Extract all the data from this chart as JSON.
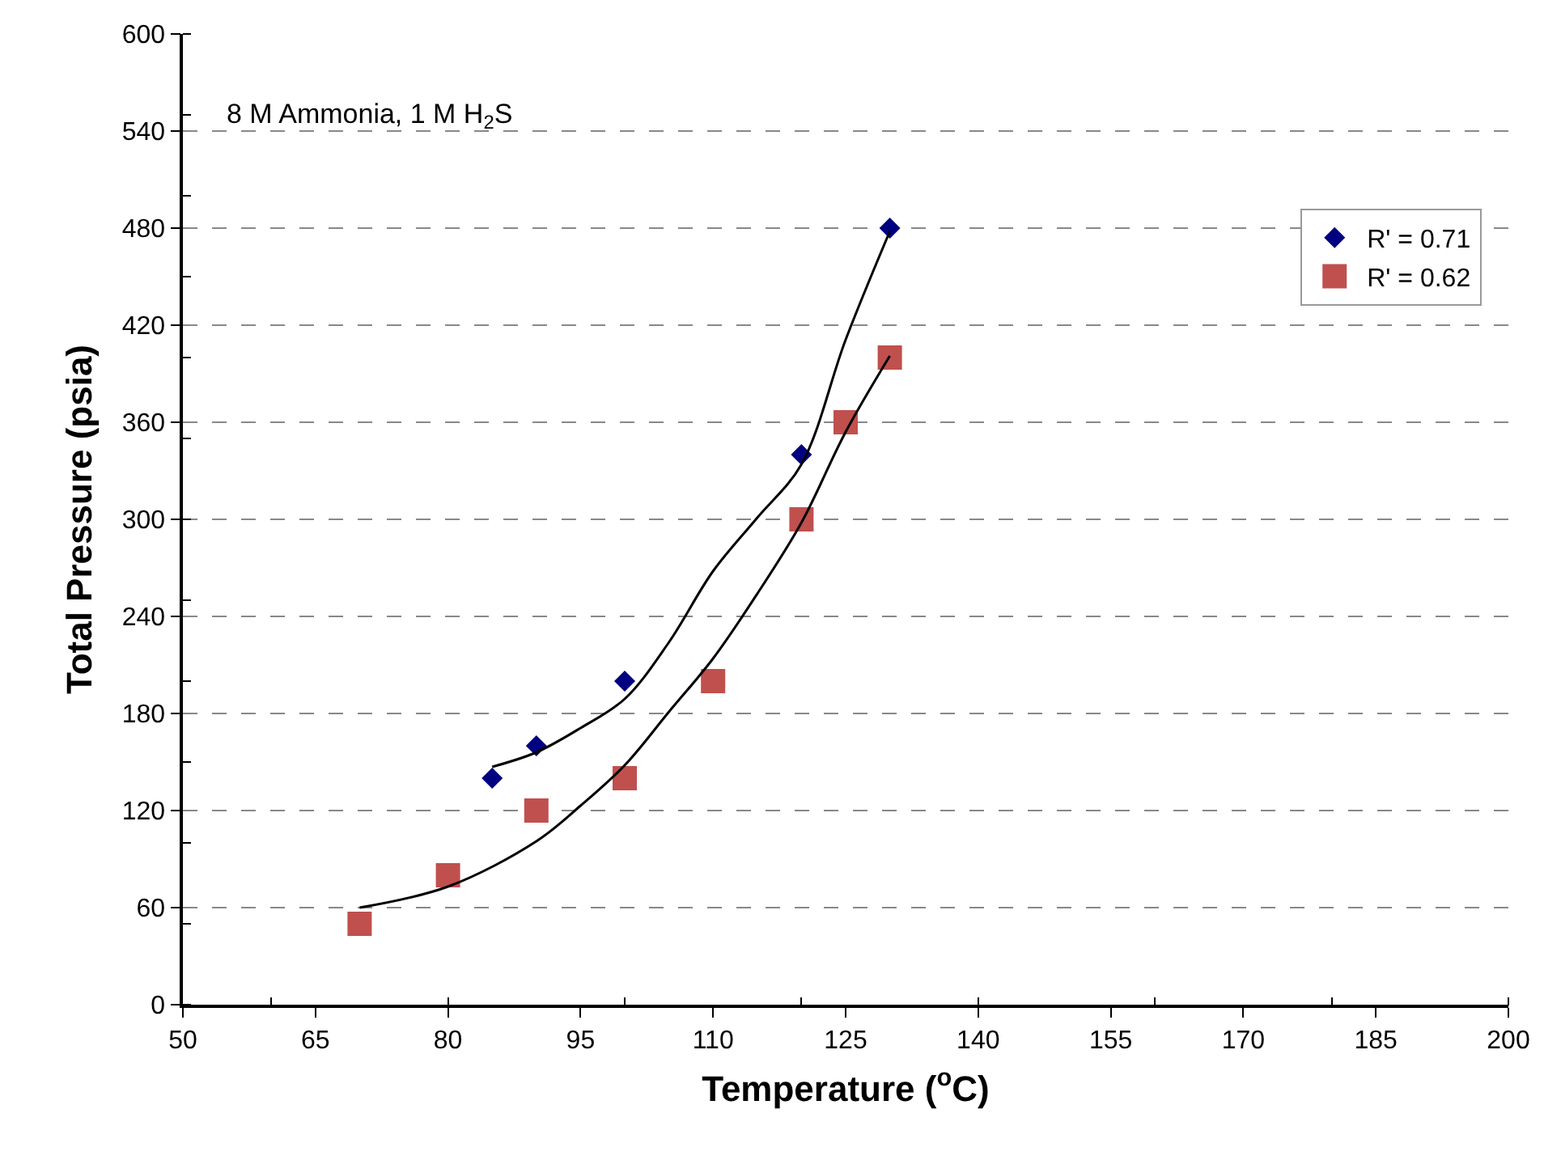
{
  "chart_data": {
    "type": "scatter",
    "xlabel": "Temperature ($^{o}$C)",
    "ylabel": "Total Pressure (psia)",
    "annotations": [
      "8 M Ammonia, 1 M H$_{2}$S"
    ],
    "xlim": [
      50,
      200
    ],
    "xticks": [
      50,
      65,
      80,
      95,
      110,
      125,
      140,
      155,
      170,
      185,
      200
    ],
    "ylim": [
      0,
      600
    ],
    "yticks": [
      0,
      60,
      120,
      180,
      240,
      300,
      360,
      420,
      480,
      540,
      600
    ],
    "grid": "y",
    "legend": "top right",
    "series": [
      {
        "name": "R' = 0.71",
        "color": "#000080",
        "marker": "diamond",
        "x": [
          85,
          90,
          100,
          120,
          130
        ],
        "values": [
          140,
          160,
          200,
          340,
          480
        ]
      },
      {
        "name": "R' = 0.62",
        "color": "#c0504d",
        "marker": "square",
        "x": [
          70,
          80,
          90,
          100,
          110,
          120,
          125,
          130
        ],
        "values": [
          50,
          80,
          120,
          140,
          200,
          300,
          360,
          400
        ]
      },
      {
        "type": "line",
        "color": "#000000",
        "marker": "none",
        "x": [
          85,
          90,
          95,
          100,
          105,
          110,
          115,
          120,
          125,
          130
        ],
        "values": [
          147,
          156,
          171,
          189,
          224,
          268,
          301,
          334,
          411,
          478
        ]
      },
      {
        "type": "line",
        "color": "#000000",
        "marker": "none",
        "x": [
          70,
          80,
          90,
          95,
          100,
          105,
          110,
          115,
          120,
          125,
          130
        ],
        "values": [
          60,
          73,
          101,
          123,
          148,
          181,
          214,
          254,
          298,
          354,
          401
        ]
      }
    ]
  }
}
